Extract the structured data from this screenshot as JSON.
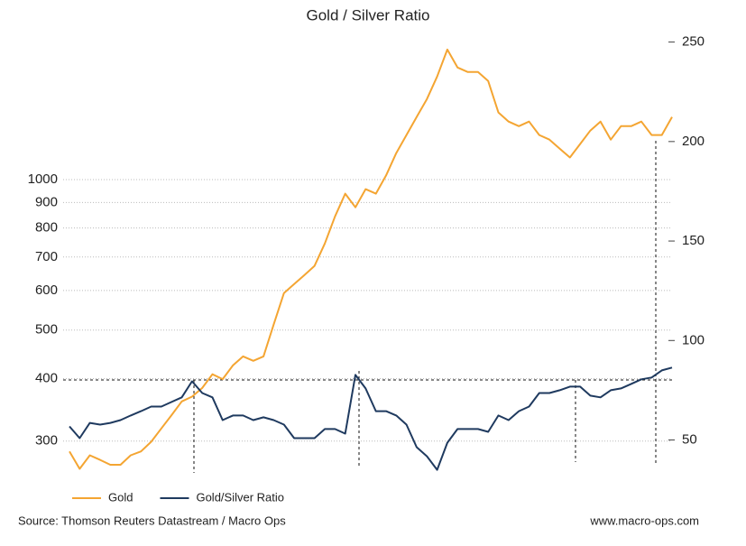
{
  "chart_data": {
    "type": "line",
    "title": "Gold / Silver Ratio",
    "y_scale": "log",
    "ylim": [
      258,
      1936
    ],
    "yticks": [
      300,
      400,
      500,
      600,
      700,
      800,
      900,
      1000
    ],
    "y2lim": [
      33,
      253
    ],
    "y2ticks": [
      50,
      100,
      150,
      200,
      250
    ],
    "grid": true,
    "legend": "bottom",
    "series": [
      {
        "name": "Gold",
        "color": "#f4a532",
        "axis": "y",
        "values": [
          286,
          264,
          281,
          275,
          269,
          269,
          281,
          286,
          299,
          318,
          338,
          360,
          368,
          383,
          408,
          399,
          425,
          443,
          434,
          443,
          513,
          593,
          618,
          644,
          672,
          745,
          844,
          937,
          880,
          957,
          937,
          1019,
          1130,
          1228,
          1334,
          1449,
          1607,
          1820,
          1675,
          1641,
          1641,
          1574,
          1362,
          1306,
          1279,
          1306,
          1228,
          1202,
          1153,
          1107,
          1178,
          1253,
          1306,
          1202,
          1279,
          1279,
          1306,
          1228,
          1228,
          1334
        ]
      },
      {
        "name": "Gold/Silver Ratio",
        "color": "#1f3a5f",
        "axis": "y2",
        "values": [
          56.8,
          50.9,
          58.6,
          57.7,
          58.6,
          60,
          62.3,
          64.5,
          66.8,
          66.8,
          69.1,
          71.4,
          79.5,
          73.6,
          71.4,
          60,
          62.3,
          62.3,
          60,
          61.4,
          60,
          57.7,
          50.9,
          50.9,
          50.9,
          55.5,
          55.5,
          53.2,
          82.7,
          75.9,
          64.5,
          64.5,
          62.3,
          57.7,
          46.4,
          41.8,
          35,
          48.6,
          55.5,
          55.5,
          55.5,
          54.1,
          62.3,
          60,
          64.5,
          66.8,
          73.6,
          73.6,
          75,
          76.8,
          76.8,
          72.3,
          71.4,
          75,
          75.9,
          78.2,
          80.5,
          81.4,
          85,
          86.4
        ]
      }
    ],
    "source": "Source: Thomson Reuters Datastream / Macro Ops",
    "website": "www.macro-ops.com"
  }
}
